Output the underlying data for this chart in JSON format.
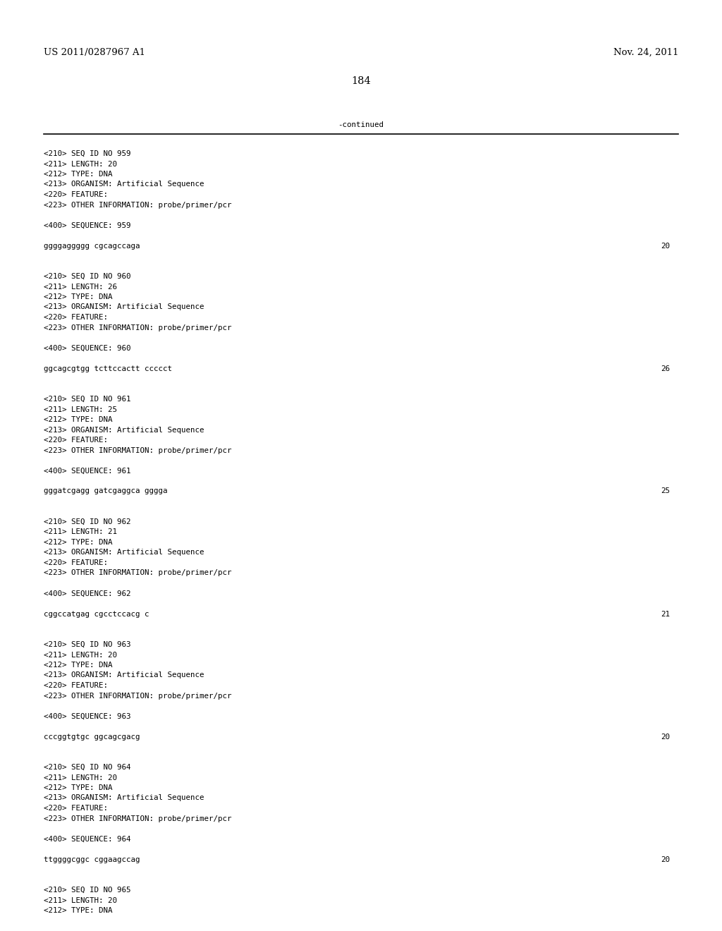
{
  "header_left": "US 2011/0287967 A1",
  "header_right": "Nov. 24, 2011",
  "page_number": "184",
  "continued_label": "-continued",
  "background_color": "#ffffff",
  "text_color": "#000000",
  "font_size_header": 9.5,
  "font_size_body": 7.8,
  "font_size_page": 10.5,
  "content_blocks": [
    {
      "meta": [
        "<210> SEQ ID NO 959",
        "<211> LENGTH: 20",
        "<212> TYPE: DNA",
        "<213> ORGANISM: Artificial Sequence",
        "<220> FEATURE:",
        "<223> OTHER INFORMATION: probe/primer/pcr"
      ],
      "seq_label": "<400> SEQUENCE: 959",
      "sequence": "ggggaggggg cgcagccaga",
      "seq_num": "20"
    },
    {
      "meta": [
        "<210> SEQ ID NO 960",
        "<211> LENGTH: 26",
        "<212> TYPE: DNA",
        "<213> ORGANISM: Artificial Sequence",
        "<220> FEATURE:",
        "<223> OTHER INFORMATION: probe/primer/pcr"
      ],
      "seq_label": "<400> SEQUENCE: 960",
      "sequence": "ggcagcgtgg tcttccactt ccccct",
      "seq_num": "26"
    },
    {
      "meta": [
        "<210> SEQ ID NO 961",
        "<211> LENGTH: 25",
        "<212> TYPE: DNA",
        "<213> ORGANISM: Artificial Sequence",
        "<220> FEATURE:",
        "<223> OTHER INFORMATION: probe/primer/pcr"
      ],
      "seq_label": "<400> SEQUENCE: 961",
      "sequence": "gggatcgagg gatcgaggca gggga",
      "seq_num": "25"
    },
    {
      "meta": [
        "<210> SEQ ID NO 962",
        "<211> LENGTH: 21",
        "<212> TYPE: DNA",
        "<213> ORGANISM: Artificial Sequence",
        "<220> FEATURE:",
        "<223> OTHER INFORMATION: probe/primer/pcr"
      ],
      "seq_label": "<400> SEQUENCE: 962",
      "sequence": "cggccatgag cgcctccacg c",
      "seq_num": "21"
    },
    {
      "meta": [
        "<210> SEQ ID NO 963",
        "<211> LENGTH: 20",
        "<212> TYPE: DNA",
        "<213> ORGANISM: Artificial Sequence",
        "<220> FEATURE:",
        "<223> OTHER INFORMATION: probe/primer/pcr"
      ],
      "seq_label": "<400> SEQUENCE: 963",
      "sequence": "cccggtgtgc ggcagcgacg",
      "seq_num": "20"
    },
    {
      "meta": [
        "<210> SEQ ID NO 964",
        "<211> LENGTH: 20",
        "<212> TYPE: DNA",
        "<213> ORGANISM: Artificial Sequence",
        "<220> FEATURE:",
        "<223> OTHER INFORMATION: probe/primer/pcr"
      ],
      "seq_label": "<400> SEQUENCE: 964",
      "sequence": "ttggggcggc cggaagccag",
      "seq_num": "20"
    },
    {
      "meta": [
        "<210> SEQ ID NO 965",
        "<211> LENGTH: 20",
        "<212> TYPE: DNA"
      ],
      "seq_label": "",
      "sequence": "",
      "seq_num": ""
    }
  ]
}
